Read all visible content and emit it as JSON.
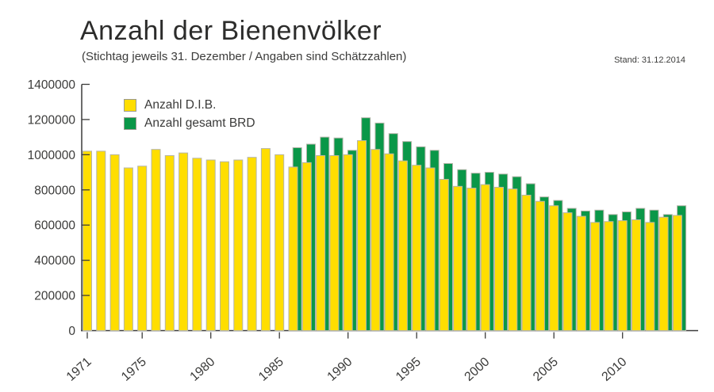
{
  "header": {
    "title": "Anzahl der Bienenvölker",
    "subtitle": "(Stichtag jeweils 31. Dezember / Angaben sind Schätzzahlen)",
    "stand": "Stand: 31.12.2014"
  },
  "legend": {
    "items": [
      {
        "label": "Anzahl D.I.B.",
        "color": "#FFDE00"
      },
      {
        "label": "Anzahl gesamt BRD",
        "color": "#0A9748"
      }
    ]
  },
  "chart_data": {
    "type": "bar",
    "title": "Anzahl der Bienenvölker",
    "subtitle": "(Stichtag jeweils 31. Dezember / Angaben sind Schätzzahlen)",
    "note": "Stand: 31.12.2014",
    "categories": [
      1971,
      1972,
      1973,
      1974,
      1975,
      1976,
      1977,
      1978,
      1979,
      1980,
      1981,
      1982,
      1983,
      1984,
      1985,
      1986,
      1987,
      1988,
      1989,
      1990,
      1991,
      1992,
      1993,
      1994,
      1995,
      1996,
      1997,
      1998,
      1999,
      2000,
      2001,
      2002,
      2003,
      2004,
      2005,
      2006,
      2007,
      2008,
      2009,
      2010,
      2011,
      2012,
      2013,
      2014
    ],
    "series": [
      {
        "name": "Anzahl D.I.B.",
        "color": "#FFDE00",
        "values": [
          1020000,
          1020000,
          1000000,
          925000,
          935000,
          1030000,
          995000,
          1010000,
          980000,
          970000,
          960000,
          970000,
          985000,
          1035000,
          1000000,
          930000,
          955000,
          995000,
          995000,
          1000000,
          1080000,
          1030000,
          1005000,
          965000,
          940000,
          925000,
          860000,
          820000,
          810000,
          830000,
          815000,
          805000,
          770000,
          735000,
          710000,
          670000,
          650000,
          615000,
          620000,
          625000,
          630000,
          615000,
          645000,
          655000
        ]
      },
      {
        "name": "Anzahl gesamt BRD",
        "color": "#0A9748",
        "values": [
          null,
          null,
          null,
          null,
          null,
          null,
          null,
          null,
          null,
          null,
          null,
          null,
          null,
          null,
          null,
          1040000,
          1060000,
          1100000,
          1095000,
          1025000,
          1210000,
          1180000,
          1120000,
          1075000,
          1045000,
          1025000,
          950000,
          915000,
          895000,
          900000,
          890000,
          875000,
          835000,
          760000,
          740000,
          695000,
          680000,
          685000,
          660000,
          675000,
          695000,
          685000,
          660000,
          710000
        ]
      }
    ],
    "xlabel": "",
    "ylabel": "",
    "ylim": [
      0,
      1400000
    ],
    "yticks": [
      0,
      200000,
      400000,
      600000,
      800000,
      1000000,
      1200000,
      1400000
    ],
    "ytick_labels": [
      "0",
      "200000",
      "400000",
      "600000",
      "800000",
      "1000000",
      "1200000",
      "1400000"
    ],
    "xticks": [
      1971,
      1975,
      1980,
      1985,
      1990,
      1995,
      2000,
      2005,
      2010
    ],
    "grid": false,
    "legend_position": "top-left",
    "bar_outline_color": "#B5B5AA",
    "axis_color": "#3B3B3A"
  }
}
